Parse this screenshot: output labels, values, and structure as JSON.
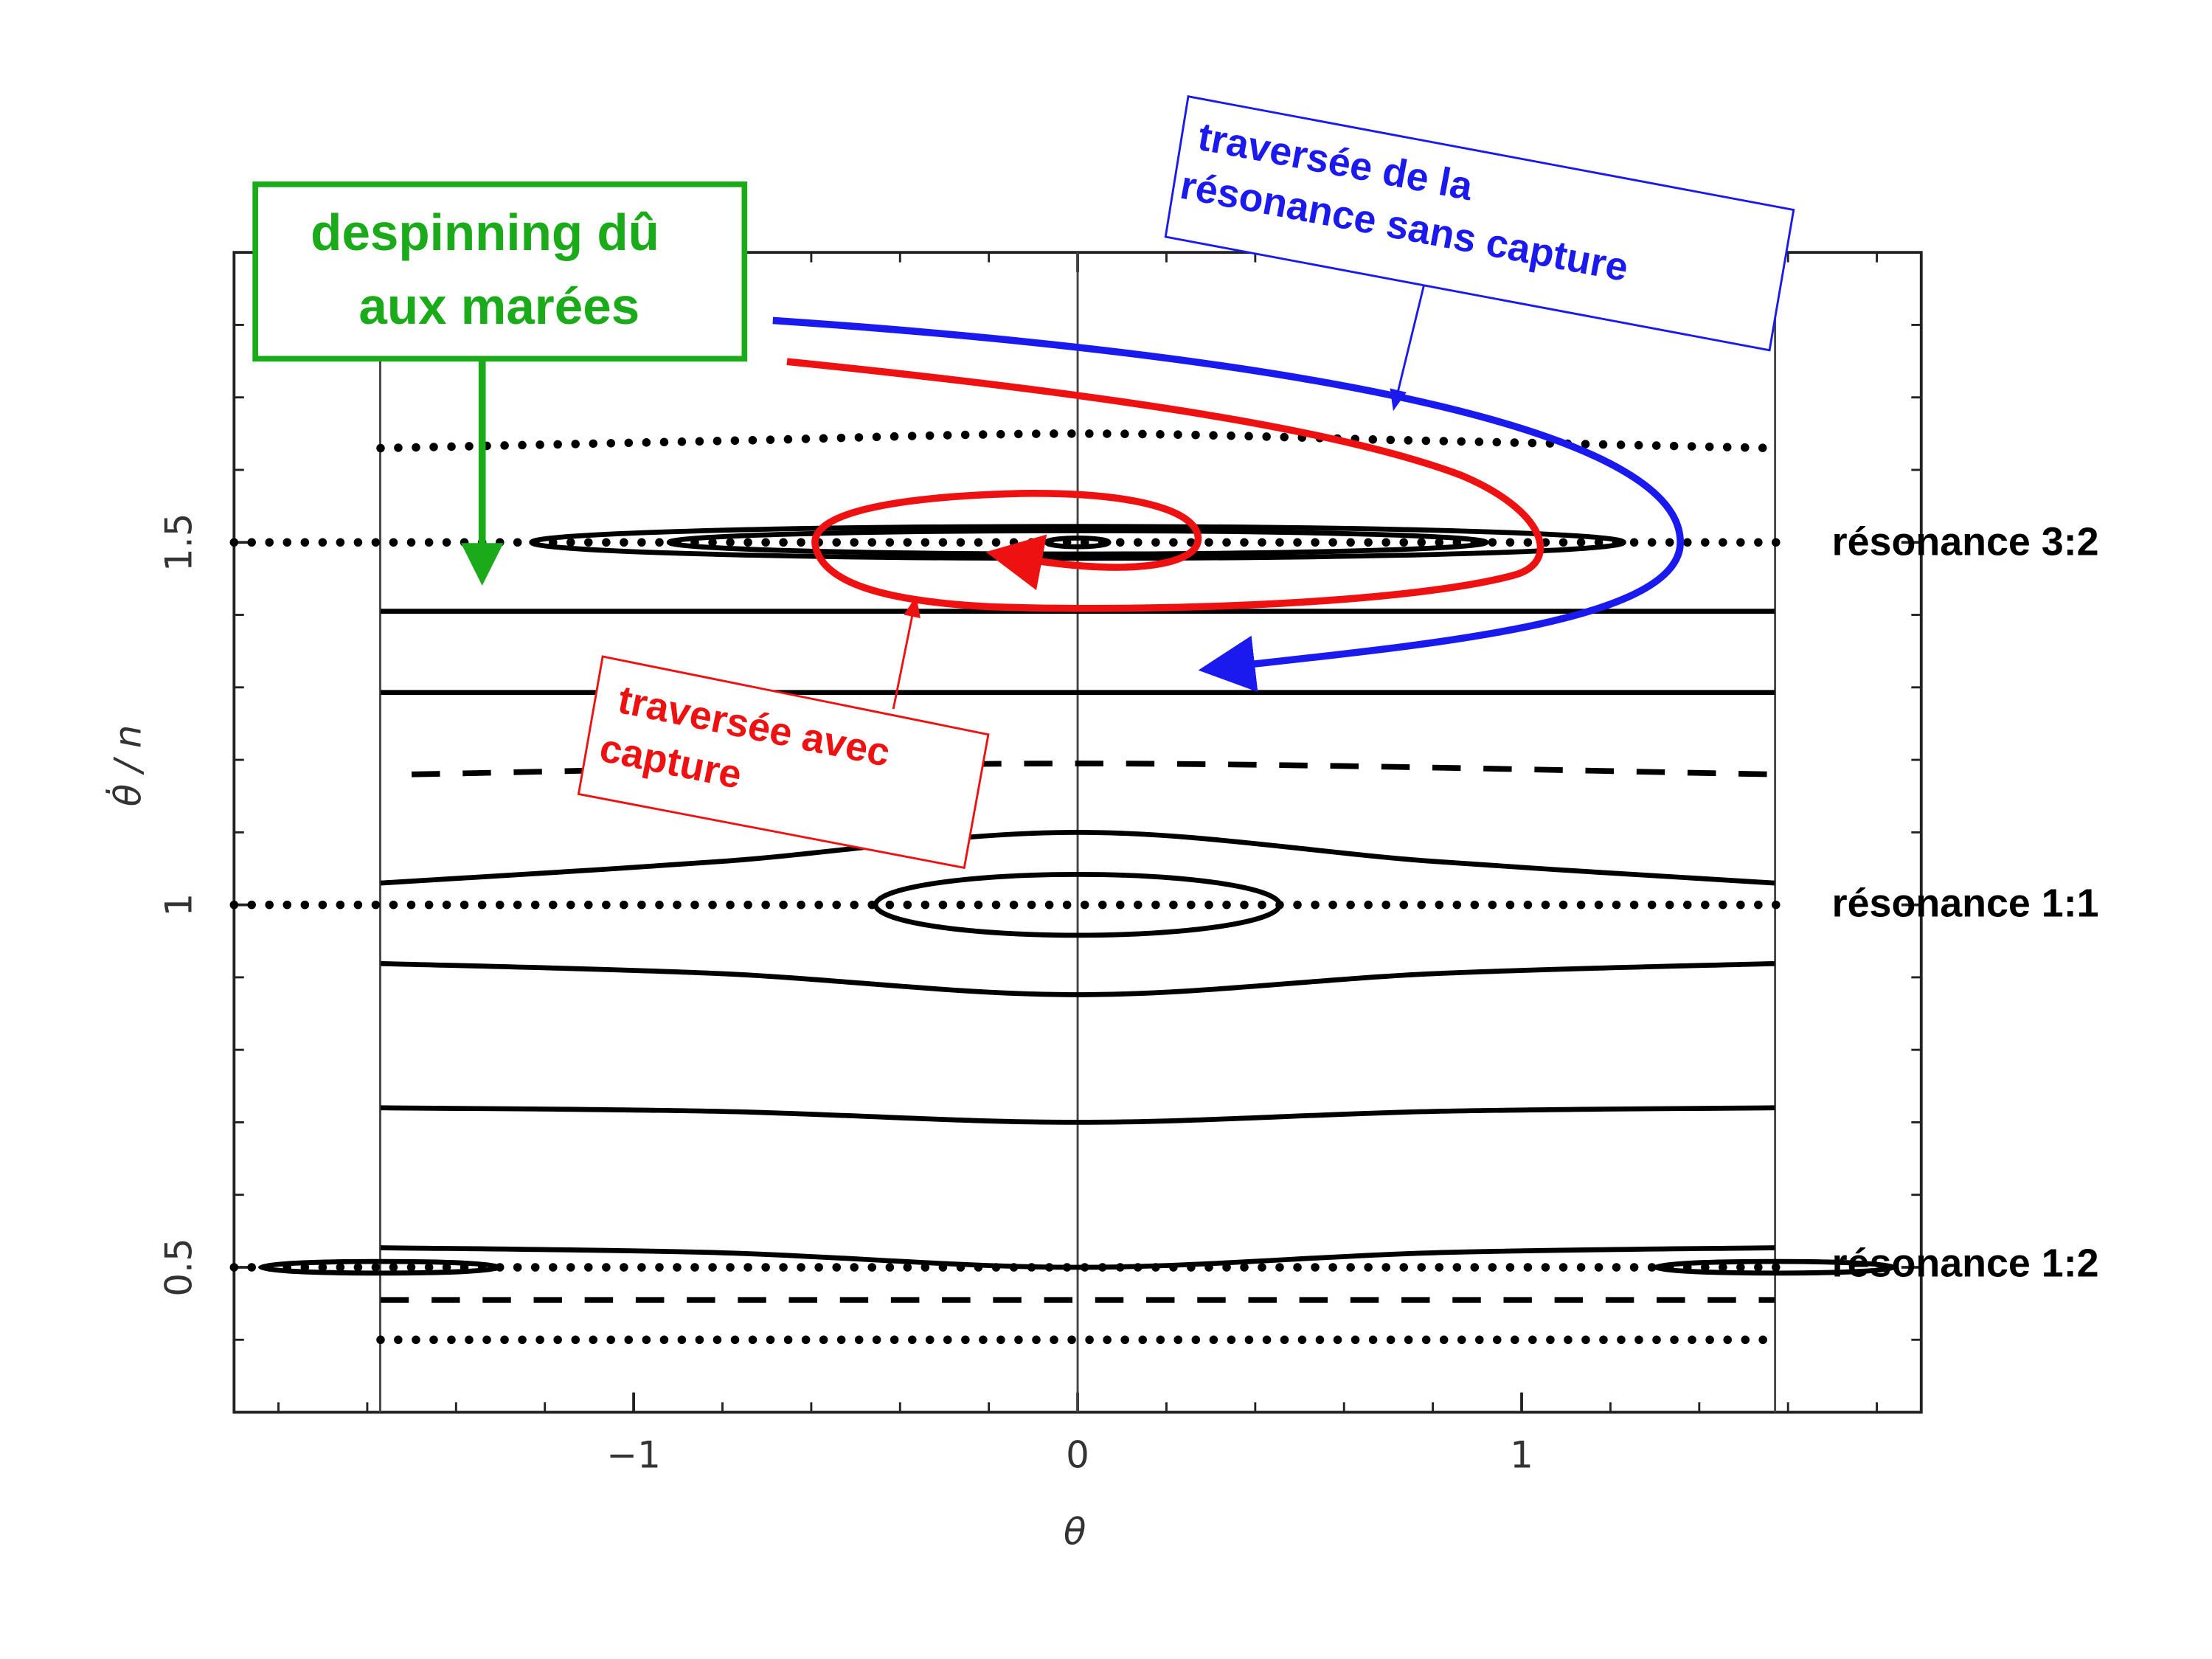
{
  "chart_data": {
    "type": "line",
    "x_label": "θ",
    "y_label": "θ̇ / n",
    "xlim": [
      -1.9,
      1.9
    ],
    "ylim": [
      0.3,
      1.9
    ],
    "xticks": [
      {
        "value": -1,
        "label": "−1"
      },
      0,
      1
    ],
    "yticks": [
      0.5,
      1,
      1.5
    ],
    "xminorticks": [
      -1.8,
      -1.6,
      -1.4,
      -1.2,
      -0.8,
      -0.6,
      -0.4,
      -0.2,
      0.2,
      0.4,
      0.6,
      0.8,
      1.2,
      1.4,
      1.6,
      1.8
    ],
    "yminorticks": [
      0.4,
      0.6,
      0.7,
      0.8,
      0.9,
      1.1,
      1.2,
      1.3,
      1.4,
      1.6,
      1.7,
      1.8
    ],
    "vlines": [
      -1.5708,
      0,
      1.5708
    ],
    "color": "#000000",
    "series": [
      {
        "style": "dotted",
        "x": [
          -1.57,
          -0.8,
          0,
          0.8,
          1.57
        ],
        "y": [
          1.63,
          1.64,
          1.65,
          1.64,
          1.63
        ]
      },
      {
        "style": "dotted",
        "x": [
          -1.9,
          1.6
        ],
        "y": [
          1.5,
          1.5
        ]
      },
      {
        "style": "solid",
        "x": [
          -1.57,
          1.57
        ],
        "y": [
          1.405,
          1.405
        ]
      },
      {
        "style": "solid",
        "x": [
          -1.57,
          1.57
        ],
        "y": [
          1.293,
          1.293
        ]
      },
      {
        "style": "dashed",
        "x": [
          -1.5,
          0,
          1.57
        ],
        "y": [
          1.18,
          1.195,
          1.18
        ]
      },
      {
        "style": "solid",
        "x": [
          -1.57,
          -0.8,
          0,
          0.8,
          1.57
        ],
        "y": [
          1.03,
          1.06,
          1.1,
          1.06,
          1.03
        ]
      },
      {
        "style": "dotted",
        "x": [
          -1.9,
          1.6
        ],
        "y": [
          1.0,
          1.0
        ]
      },
      {
        "style": "solid",
        "x": [
          -1.57,
          -0.8,
          0,
          0.8,
          1.57
        ],
        "y": [
          0.919,
          0.905,
          0.876,
          0.905,
          0.919
        ]
      },
      {
        "style": "solid",
        "x": [
          -1.57,
          -0.8,
          0,
          0.8,
          1.57
        ],
        "y": [
          0.72,
          0.715,
          0.7,
          0.715,
          0.72
        ]
      },
      {
        "style": "solid",
        "x": [
          -1.57,
          -0.8,
          0,
          0.8,
          1.57
        ],
        "y": [
          0.527,
          0.52,
          0.5,
          0.52,
          0.527
        ]
      },
      {
        "style": "dotted",
        "x": [
          -1.9,
          1.6
        ],
        "y": [
          0.5,
          0.5
        ]
      },
      {
        "style": "dashed",
        "x": [
          -1.57,
          1.57
        ],
        "y": [
          0.455,
          0.455
        ]
      },
      {
        "style": "dotted",
        "x": [
          -1.57,
          1.57
        ],
        "y": [
          0.4,
          0.4
        ]
      }
    ],
    "islands": [
      {
        "x_center": 0,
        "y_center": 1.5,
        "x_half": 1.23,
        "y_half": 0.022
      },
      {
        "x_center": 0,
        "y_center": 1.5,
        "x_half": 0.92,
        "y_half": 0.016
      },
      {
        "x_center": 0,
        "y_center": 1.5,
        "x_half": 0.07,
        "y_half": 0.006
      },
      {
        "x_center": 0,
        "y_center": 1.0,
        "x_half": 0.455,
        "y_half": 0.042
      },
      {
        "x_center": -1.57,
        "y_center": 0.5,
        "x_half": 0.27,
        "y_half": 0.008
      },
      {
        "x_center": 1.57,
        "y_center": 0.5,
        "x_half": 0.27,
        "y_half": 0.008
      }
    ],
    "annotations": {
      "despinning": [
        "despinning dû",
        "aux marées"
      ],
      "without_capture": [
        "traversée de la",
        "résonance sans capture"
      ],
      "with_capture": [
        "traversée avec",
        "capture"
      ],
      "resonance_3_2": "résonance 3:2",
      "resonance_1_1": "résonance 1:1",
      "resonance_1_2": "résonance 1:2"
    }
  }
}
